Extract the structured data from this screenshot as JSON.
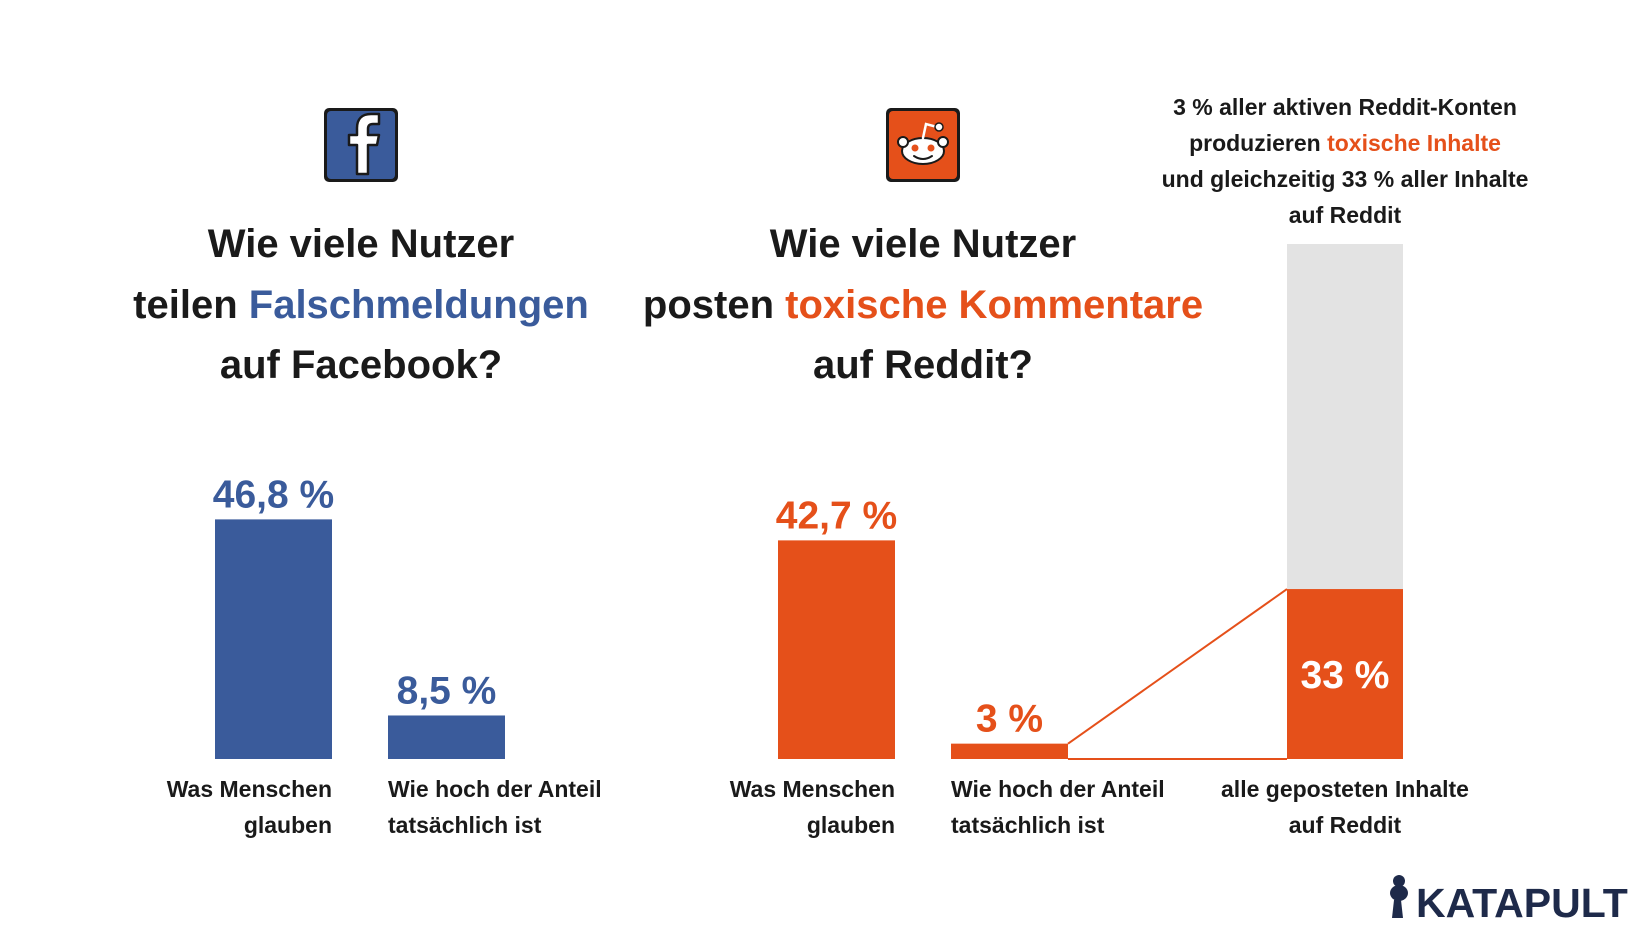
{
  "brand": {
    "name": "KATAPULT",
    "accent": "#1e2a4a"
  },
  "colors": {
    "facebook": "#3a5b9b",
    "reddit": "#e5501a",
    "grey": "#e3e3e3",
    "text": "#1a1a1a"
  },
  "icons": {
    "facebook": "facebook-logo-icon",
    "reddit": "reddit-logo-icon",
    "brand": "katapult-logo-icon"
  },
  "chart_data": [
    {
      "type": "bar",
      "title": {
        "line1": "Wie viele Nutzer",
        "line2_pre": "teilen ",
        "line2_highlight": "Falschmeldungen",
        "line3": "auf Facebook?"
      },
      "categories": [
        "Was Menschen glauben",
        "Wie hoch der Anteil tatsächlich ist"
      ],
      "category_lines": [
        [
          "Was Menschen",
          "glauben"
        ],
        [
          "Wie hoch der Anteil",
          "tatsächlich ist"
        ]
      ],
      "values": [
        46.8,
        8.5
      ],
      "value_labels": [
        "46,8 %",
        "8,5 %"
      ],
      "ylim": [
        0,
        50
      ],
      "color": "#3a5b9b"
    },
    {
      "type": "bar",
      "title": {
        "line1": "Wie viele Nutzer",
        "line2_pre": "posten ",
        "line2_highlight": "toxische Kommentare",
        "line3": "auf Reddit?"
      },
      "categories": [
        "Was Menschen glauben",
        "Wie hoch der Anteil tatsächlich ist"
      ],
      "category_lines": [
        [
          "Was Menschen",
          "glauben"
        ],
        [
          "Wie hoch der Anteil",
          "tatsächlich ist"
        ]
      ],
      "values": [
        42.7,
        3
      ],
      "value_labels": [
        "42,7 %",
        "3 %"
      ],
      "ylim": [
        0,
        50
      ],
      "color": "#e5501a"
    },
    {
      "type": "bar",
      "stacked": true,
      "category": "alle geposteten Inhalte auf Reddit",
      "category_lines": [
        "alle geposteten Inhalte",
        "auf Reddit"
      ],
      "segments": [
        {
          "value": 33,
          "label": "33 %",
          "color": "#e5501a"
        },
        {
          "value": 67,
          "label": "",
          "color": "#e3e3e3"
        }
      ],
      "total": 100,
      "annotation": {
        "line1": "3 % aller aktiven Reddit-Konten",
        "line2_pre": "produzieren ",
        "line2_highlight": "toxische Inhalte",
        "line3": "und gleichzeitig 33 % aller Inhalte",
        "line4": "auf Reddit"
      }
    }
  ]
}
